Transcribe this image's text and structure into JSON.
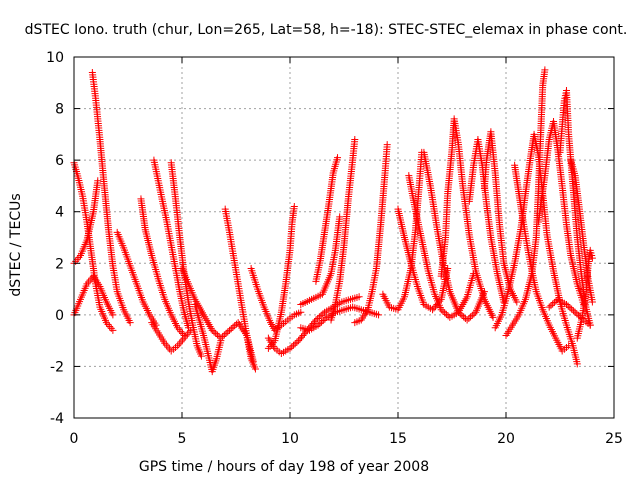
{
  "chart_data": {
    "type": "scatter",
    "title": "dSTEC Iono. truth (chur, Lon=265, Lat=58, h=-18): STEC-STEC_elemax in phase cont.",
    "xlabel": "GPS time / hours of day 198 of year 2008",
    "ylabel": "dSTEC  / TECUs",
    "xlim": [
      0,
      25
    ],
    "ylim": [
      -4,
      10
    ],
    "xticks": [
      "0",
      "5",
      "10",
      "15",
      "20",
      "25"
    ],
    "yticks": [
      "-4",
      "-2",
      "0",
      "2",
      "4",
      "6",
      "8",
      "10"
    ],
    "grid": true,
    "legend": "none",
    "marker": "+",
    "color": "#ff0000",
    "series": [
      {
        "points": [
          [
            0.0,
            5.9
          ],
          [
            0.2,
            5.3
          ],
          [
            0.4,
            4.6
          ],
          [
            0.6,
            3.6
          ],
          [
            0.8,
            2.4
          ],
          [
            1.0,
            1.2
          ],
          [
            1.2,
            0.3
          ],
          [
            1.5,
            -0.3
          ],
          [
            1.8,
            -0.6
          ]
        ]
      },
      {
        "points": [
          [
            0.85,
            9.4
          ],
          [
            1.0,
            8.4
          ],
          [
            1.2,
            6.8
          ],
          [
            1.4,
            5.0
          ],
          [
            1.6,
            3.3
          ],
          [
            1.8,
            1.9
          ],
          [
            2.0,
            0.9
          ],
          [
            2.3,
            0.2
          ],
          [
            2.6,
            -0.3
          ]
        ]
      },
      {
        "points": [
          [
            0.0,
            0.0
          ],
          [
            0.3,
            0.6
          ],
          [
            0.6,
            1.2
          ],
          [
            0.9,
            1.5
          ],
          [
            1.2,
            1.1
          ],
          [
            1.5,
            0.5
          ],
          [
            1.8,
            0.0
          ]
        ]
      },
      {
        "points": [
          [
            0.0,
            2.0
          ],
          [
            0.3,
            2.3
          ],
          [
            0.6,
            2.9
          ],
          [
            0.9,
            4.0
          ],
          [
            1.1,
            5.2
          ]
        ]
      },
      {
        "points": [
          [
            2.0,
            3.2
          ],
          [
            2.3,
            2.6
          ],
          [
            2.6,
            1.9
          ],
          [
            2.9,
            1.2
          ],
          [
            3.2,
            0.5
          ],
          [
            3.5,
            0.0
          ],
          [
            3.8,
            -0.4
          ]
        ]
      },
      {
        "points": [
          [
            3.1,
            4.5
          ],
          [
            3.3,
            3.3
          ],
          [
            3.6,
            2.3
          ],
          [
            3.9,
            1.4
          ],
          [
            4.2,
            0.6
          ],
          [
            4.5,
            0.0
          ],
          [
            4.8,
            -0.5
          ],
          [
            5.1,
            -0.8
          ]
        ]
      },
      {
        "points": [
          [
            3.7,
            6.0
          ],
          [
            3.9,
            5.2
          ],
          [
            4.1,
            4.4
          ],
          [
            4.3,
            3.6
          ],
          [
            4.5,
            2.7
          ],
          [
            4.7,
            1.8
          ],
          [
            4.9,
            0.9
          ],
          [
            5.1,
            0.1
          ],
          [
            5.3,
            -0.5
          ]
        ]
      },
      {
        "points": [
          [
            4.5,
            5.9
          ],
          [
            4.7,
            4.5
          ],
          [
            4.9,
            3.0
          ],
          [
            5.1,
            1.6
          ],
          [
            5.3,
            0.5
          ],
          [
            5.5,
            -0.4
          ],
          [
            5.7,
            -1.2
          ],
          [
            5.9,
            -1.6
          ]
        ]
      },
      {
        "points": [
          [
            3.6,
            -0.3
          ],
          [
            3.9,
            -0.7
          ],
          [
            4.2,
            -1.1
          ],
          [
            4.5,
            -1.4
          ],
          [
            4.8,
            -1.2
          ],
          [
            5.1,
            -0.9
          ],
          [
            5.4,
            -0.6
          ]
        ]
      },
      {
        "points": [
          [
            5.6,
            0.4
          ],
          [
            5.8,
            -0.2
          ],
          [
            6.0,
            -0.8
          ],
          [
            6.2,
            -1.5
          ],
          [
            6.4,
            -2.2
          ],
          [
            6.6,
            -1.7
          ],
          [
            6.8,
            -1.0
          ]
        ]
      },
      {
        "points": [
          [
            5.0,
            1.8
          ],
          [
            5.3,
            1.2
          ],
          [
            5.6,
            0.6
          ],
          [
            6.0,
            0.0
          ],
          [
            6.4,
            -0.6
          ],
          [
            6.8,
            -0.9
          ],
          [
            7.2,
            -0.6
          ],
          [
            7.6,
            -0.3
          ],
          [
            8.0,
            -0.8
          ],
          [
            8.3,
            -1.8
          ]
        ]
      },
      {
        "points": [
          [
            7.0,
            4.1
          ],
          [
            7.2,
            3.2
          ],
          [
            7.4,
            2.2
          ],
          [
            7.6,
            1.2
          ],
          [
            7.8,
            0.2
          ],
          [
            8.0,
            -0.8
          ],
          [
            8.2,
            -1.7
          ],
          [
            8.4,
            -2.1
          ]
        ]
      },
      {
        "points": [
          [
            8.2,
            1.8
          ],
          [
            8.5,
            1.0
          ],
          [
            8.8,
            0.3
          ],
          [
            9.1,
            -0.3
          ],
          [
            9.3,
            -0.6
          ],
          [
            9.6,
            -0.4
          ],
          [
            9.9,
            -0.2
          ],
          [
            10.2,
            0.0
          ],
          [
            10.5,
            0.1
          ]
        ]
      },
      {
        "points": [
          [
            9.0,
            -1.3
          ],
          [
            9.3,
            -1.0
          ],
          [
            9.6,
            0.1
          ],
          [
            9.8,
            1.2
          ],
          [
            10.0,
            2.5
          ],
          [
            10.1,
            3.6
          ],
          [
            10.2,
            4.2
          ]
        ]
      },
      {
        "points": [
          [
            9.0,
            -0.9
          ],
          [
            9.3,
            -1.3
          ],
          [
            9.6,
            -1.5
          ],
          [
            10.0,
            -1.3
          ],
          [
            10.4,
            -1.0
          ],
          [
            10.8,
            -0.6
          ],
          [
            11.2,
            -0.2
          ],
          [
            11.6,
            0.1
          ],
          [
            12.0,
            0.3
          ],
          [
            12.4,
            0.5
          ],
          [
            12.8,
            0.6
          ],
          [
            13.2,
            0.7
          ]
        ]
      },
      {
        "points": [
          [
            10.5,
            -0.5
          ],
          [
            10.9,
            -0.6
          ],
          [
            11.3,
            -0.4
          ],
          [
            11.7,
            -0.1
          ],
          [
            12.1,
            0.1
          ],
          [
            12.5,
            0.2
          ],
          [
            12.9,
            0.3
          ],
          [
            13.3,
            0.2
          ],
          [
            13.7,
            0.1
          ],
          [
            14.1,
            0.0
          ]
        ]
      },
      {
        "points": [
          [
            10.5,
            0.4
          ],
          [
            11.0,
            0.6
          ],
          [
            11.5,
            0.8
          ],
          [
            11.9,
            1.6
          ],
          [
            12.1,
            2.5
          ],
          [
            12.3,
            3.8
          ]
        ]
      },
      {
        "points": [
          [
            11.2,
            1.3
          ],
          [
            11.4,
            2.1
          ],
          [
            11.6,
            3.2
          ],
          [
            11.8,
            4.3
          ],
          [
            12.0,
            5.5
          ],
          [
            12.2,
            6.1
          ]
        ]
      },
      {
        "points": [
          [
            11.9,
            -0.2
          ],
          [
            12.1,
            0.4
          ],
          [
            12.3,
            1.3
          ],
          [
            12.5,
            2.7
          ],
          [
            12.7,
            4.5
          ],
          [
            12.9,
            6.0
          ],
          [
            13.0,
            6.8
          ]
        ]
      },
      {
        "points": [
          [
            13.0,
            -0.3
          ],
          [
            13.3,
            -0.2
          ],
          [
            13.6,
            0.2
          ],
          [
            13.8,
            0.9
          ],
          [
            14.0,
            1.8
          ],
          [
            14.2,
            3.5
          ],
          [
            14.4,
            5.5
          ],
          [
            14.5,
            6.6
          ]
        ]
      },
      {
        "points": [
          [
            14.3,
            0.8
          ],
          [
            14.6,
            0.3
          ],
          [
            15.0,
            0.2
          ],
          [
            15.3,
            0.7
          ],
          [
            15.6,
            1.8
          ],
          [
            15.8,
            3.2
          ],
          [
            16.0,
            5.2
          ],
          [
            16.1,
            6.3
          ]
        ]
      },
      {
        "points": [
          [
            15.0,
            4.1
          ],
          [
            15.3,
            3.0
          ],
          [
            15.6,
            2.0
          ],
          [
            15.9,
            1.1
          ],
          [
            16.2,
            0.4
          ],
          [
            16.6,
            0.2
          ],
          [
            17.0,
            0.6
          ],
          [
            17.3,
            1.8
          ]
        ]
      },
      {
        "points": [
          [
            15.5,
            5.4
          ],
          [
            15.8,
            4.1
          ],
          [
            16.1,
            2.9
          ],
          [
            16.4,
            1.7
          ],
          [
            16.7,
            0.8
          ],
          [
            17.0,
            0.2
          ],
          [
            17.4,
            -0.1
          ],
          [
            17.8,
            0.1
          ],
          [
            18.2,
            0.7
          ],
          [
            18.5,
            1.6
          ]
        ]
      },
      {
        "points": [
          [
            16.2,
            6.3
          ],
          [
            16.5,
            5.0
          ],
          [
            16.8,
            3.4
          ],
          [
            17.1,
            2.0
          ],
          [
            17.4,
            0.9
          ],
          [
            17.8,
            0.1
          ],
          [
            18.2,
            -0.2
          ],
          [
            18.6,
            0.1
          ],
          [
            19.0,
            0.9
          ]
        ]
      },
      {
        "points": [
          [
            17.0,
            1.5
          ],
          [
            17.2,
            3.0
          ],
          [
            17.3,
            4.7
          ],
          [
            17.5,
            6.4
          ],
          [
            17.6,
            7.6
          ],
          [
            17.8,
            6.6
          ],
          [
            18.0,
            5.0
          ],
          [
            18.3,
            3.1
          ],
          [
            18.6,
            1.7
          ],
          [
            19.0,
            0.6
          ],
          [
            19.4,
            -0.1
          ]
        ]
      },
      {
        "points": [
          [
            18.3,
            4.4
          ],
          [
            18.5,
            5.8
          ],
          [
            18.7,
            6.8
          ],
          [
            18.9,
            5.8
          ],
          [
            19.1,
            4.3
          ],
          [
            19.3,
            3.0
          ],
          [
            19.6,
            1.6
          ],
          [
            19.9,
            0.5
          ]
        ]
      },
      {
        "points": [
          [
            19.0,
            4.9
          ],
          [
            19.1,
            6.0
          ],
          [
            19.3,
            7.1
          ],
          [
            19.5,
            5.5
          ],
          [
            19.7,
            3.5
          ],
          [
            19.9,
            2.0
          ],
          [
            20.2,
            1.0
          ],
          [
            20.5,
            0.5
          ]
        ]
      },
      {
        "points": [
          [
            19.5,
            -0.5
          ],
          [
            19.8,
            0.0
          ],
          [
            20.1,
            0.9
          ],
          [
            20.4,
            2.0
          ],
          [
            20.7,
            3.4
          ],
          [
            20.9,
            4.7
          ],
          [
            21.1,
            5.9
          ],
          [
            21.3,
            7.0
          ],
          [
            21.5,
            6.2
          ],
          [
            21.7,
            4.7
          ],
          [
            21.9,
            3.1
          ],
          [
            22.2,
            1.7
          ],
          [
            22.5,
            0.5
          ],
          [
            22.8,
            -0.4
          ],
          [
            23.1,
            -1.2
          ],
          [
            23.3,
            -1.9
          ]
        ]
      },
      {
        "points": [
          [
            20.4,
            5.8
          ],
          [
            20.6,
            4.7
          ],
          [
            20.8,
            3.6
          ],
          [
            21.0,
            2.6
          ],
          [
            21.2,
            1.7
          ],
          [
            21.4,
            0.9
          ],
          [
            21.7,
            0.2
          ],
          [
            22.0,
            -0.4
          ],
          [
            22.3,
            -0.9
          ],
          [
            22.6,
            -1.4
          ],
          [
            22.9,
            -1.2
          ]
        ]
      },
      {
        "points": [
          [
            20.0,
            -0.8
          ],
          [
            20.3,
            -0.4
          ],
          [
            20.6,
            0.0
          ],
          [
            20.9,
            0.6
          ],
          [
            21.2,
            1.6
          ],
          [
            21.4,
            3.0
          ],
          [
            21.5,
            4.8
          ],
          [
            21.6,
            6.9
          ],
          [
            21.7,
            8.9
          ],
          [
            21.8,
            9.5
          ]
        ]
      },
      {
        "points": [
          [
            21.5,
            3.6
          ],
          [
            21.8,
            5.4
          ],
          [
            22.0,
            6.8
          ],
          [
            22.2,
            7.5
          ],
          [
            22.4,
            6.4
          ],
          [
            22.6,
            5.0
          ],
          [
            22.8,
            3.5
          ],
          [
            23.0,
            2.3
          ],
          [
            23.3,
            1.2
          ],
          [
            23.6,
            0.4
          ]
        ]
      },
      {
        "points": [
          [
            22.5,
            6.3
          ],
          [
            22.6,
            7.3
          ],
          [
            22.7,
            8.3
          ],
          [
            22.8,
            8.7
          ],
          [
            22.9,
            7.0
          ],
          [
            23.1,
            5.0
          ],
          [
            23.3,
            3.0
          ],
          [
            23.5,
            1.5
          ],
          [
            23.7,
            0.3
          ],
          [
            23.9,
            -0.4
          ]
        ]
      },
      {
        "points": [
          [
            23.0,
            6.0
          ],
          [
            23.2,
            5.4
          ],
          [
            23.4,
            4.1
          ],
          [
            23.6,
            2.7
          ],
          [
            23.8,
            1.4
          ],
          [
            24.0,
            0.5
          ]
        ]
      },
      {
        "points": [
          [
            22.0,
            0.3
          ],
          [
            22.4,
            0.6
          ],
          [
            22.8,
            0.4
          ],
          [
            23.2,
            0.1
          ],
          [
            23.6,
            -0.2
          ],
          [
            23.9,
            -0.4
          ]
        ]
      },
      {
        "points": [
          [
            23.3,
            -0.9
          ],
          [
            23.5,
            -0.2
          ],
          [
            23.7,
            0.8
          ],
          [
            23.8,
            1.9
          ],
          [
            23.9,
            2.5
          ],
          [
            24.0,
            2.2
          ]
        ]
      }
    ]
  }
}
